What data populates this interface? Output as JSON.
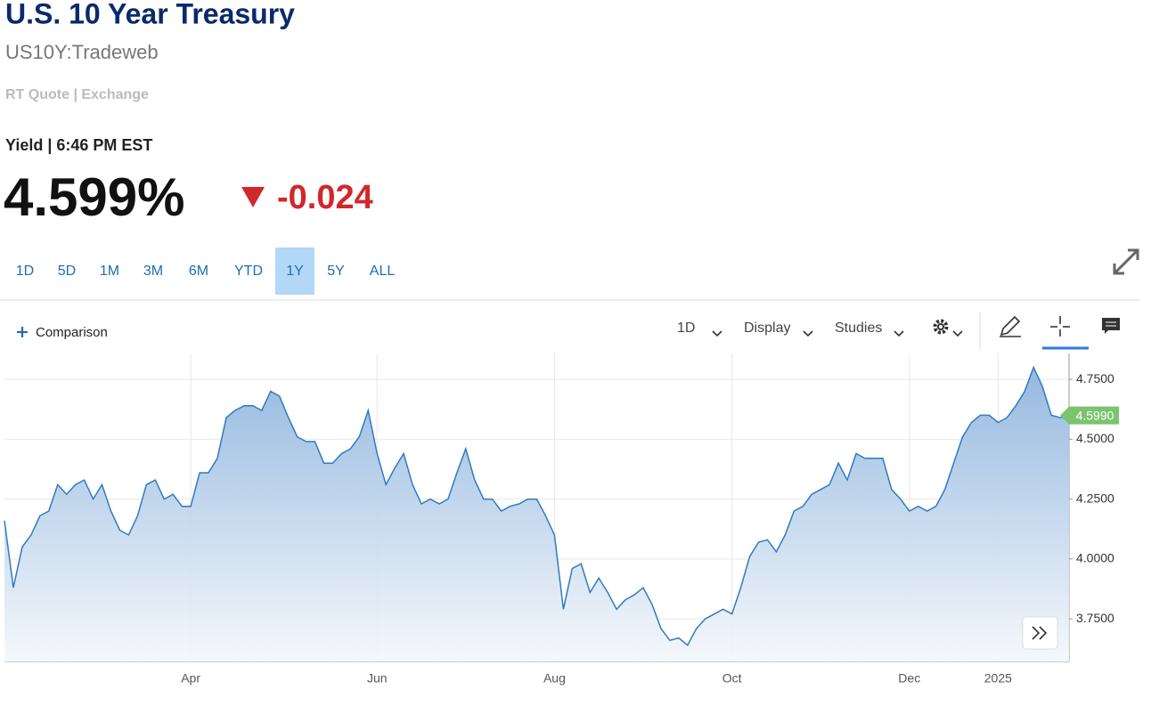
{
  "header": {
    "title": "U.S. 10 Year Treasury",
    "symbol": "US10Y:Tradeweb",
    "source": "RT Quote | Exchange",
    "quote_label": "Yield | 6:46 PM EST",
    "price": "4.599%",
    "change": "-0.024"
  },
  "ranges": {
    "options": [
      "1D",
      "5D",
      "1M",
      "3M",
      "6M",
      "YTD",
      "1Y",
      "5Y",
      "ALL"
    ],
    "selected": "1Y"
  },
  "toolbar": {
    "comparison": "Comparison",
    "interval": "1D",
    "display": "Display",
    "studies": "Studies"
  },
  "chart_data": {
    "type": "area",
    "color": "#2f7bc0",
    "categories": [
      null,
      null,
      null,
      null,
      null,
      null,
      null,
      null,
      null,
      null,
      null,
      null,
      null,
      null,
      null,
      null,
      null,
      null,
      null,
      null,
      null,
      "Apr",
      null,
      null,
      null,
      null,
      null,
      null,
      null,
      null,
      null,
      null,
      null,
      null,
      null,
      null,
      null,
      null,
      null,
      null,
      null,
      null,
      "Jun",
      null,
      null,
      null,
      null,
      null,
      null,
      null,
      null,
      null,
      null,
      null,
      null,
      null,
      null,
      null,
      null,
      null,
      null,
      null,
      "Aug",
      null,
      null,
      null,
      null,
      null,
      null,
      null,
      null,
      null,
      null,
      null,
      null,
      null,
      null,
      null,
      null,
      null,
      null,
      null,
      "Oct",
      null,
      null,
      null,
      null,
      null,
      null,
      null,
      null,
      null,
      null,
      null,
      null,
      null,
      null,
      null,
      null,
      null,
      null,
      null,
      "Dec",
      null,
      null,
      null,
      null,
      null,
      null,
      null,
      null,
      null,
      "2025",
      null,
      null,
      null,
      null,
      null,
      null,
      null,
      null
    ],
    "values": [
      4.16,
      3.88,
      4.05,
      4.1,
      4.18,
      4.2,
      4.31,
      4.27,
      4.31,
      4.33,
      4.25,
      4.31,
      4.2,
      4.12,
      4.1,
      4.18,
      4.31,
      4.33,
      4.25,
      4.27,
      4.22,
      4.22,
      4.36,
      4.36,
      4.42,
      4.59,
      4.62,
      4.64,
      4.64,
      4.62,
      4.7,
      4.68,
      4.59,
      4.51,
      4.49,
      4.49,
      4.4,
      4.4,
      4.44,
      4.46,
      4.51,
      4.62,
      4.44,
      4.31,
      4.38,
      4.44,
      4.31,
      4.23,
      4.25,
      4.23,
      4.25,
      4.36,
      4.46,
      4.33,
      4.25,
      4.25,
      4.2,
      4.22,
      4.23,
      4.25,
      4.25,
      4.18,
      4.1,
      3.79,
      3.96,
      3.98,
      3.86,
      3.92,
      3.86,
      3.79,
      3.83,
      3.85,
      3.88,
      3.81,
      3.71,
      3.66,
      3.67,
      3.64,
      3.71,
      3.75,
      3.77,
      3.79,
      3.77,
      3.88,
      4.01,
      4.07,
      4.08,
      4.03,
      4.1,
      4.2,
      4.22,
      4.27,
      4.29,
      4.31,
      4.4,
      4.33,
      4.44,
      4.42,
      4.42,
      4.42,
      4.29,
      4.25,
      4.2,
      4.22,
      4.2,
      4.22,
      4.29,
      4.4,
      4.51,
      4.57,
      4.6,
      4.6,
      4.57,
      4.59,
      4.64,
      4.7,
      4.8,
      4.72,
      4.6,
      4.59,
      4.599
    ],
    "ylim": [
      3.572,
      4.858
    ],
    "yticks": [
      {
        "value": 3.75,
        "label": "3.7500"
      },
      {
        "value": 4.0,
        "label": "4.0000"
      },
      {
        "value": 4.25,
        "label": "4.2500"
      },
      {
        "value": 4.5,
        "label": "4.5000"
      },
      {
        "value": 4.75,
        "label": "4.7500"
      }
    ],
    "grid": true,
    "last_value": {
      "value": 4.599,
      "label": "4.5990"
    },
    "last_value_color": "#7cc36e"
  }
}
